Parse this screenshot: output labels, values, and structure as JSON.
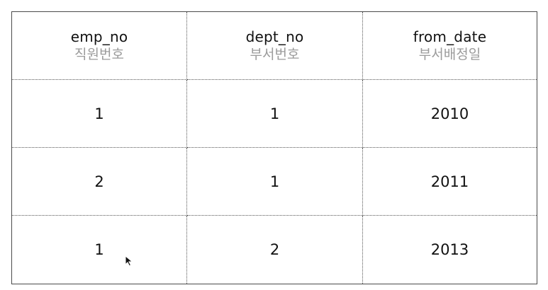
{
  "table": {
    "columns": [
      {
        "name": "emp_no",
        "desc": "직원번호"
      },
      {
        "name": "dept_no",
        "desc": "부서번호"
      },
      {
        "name": "from_date",
        "desc": "부서배정일"
      }
    ],
    "rows": [
      [
        "1",
        "1",
        "2010"
      ],
      [
        "2",
        "1",
        "2011"
      ],
      [
        "1",
        "2",
        "2013"
      ]
    ]
  },
  "icons": {
    "cursor": "mouse-pointer-icon"
  }
}
